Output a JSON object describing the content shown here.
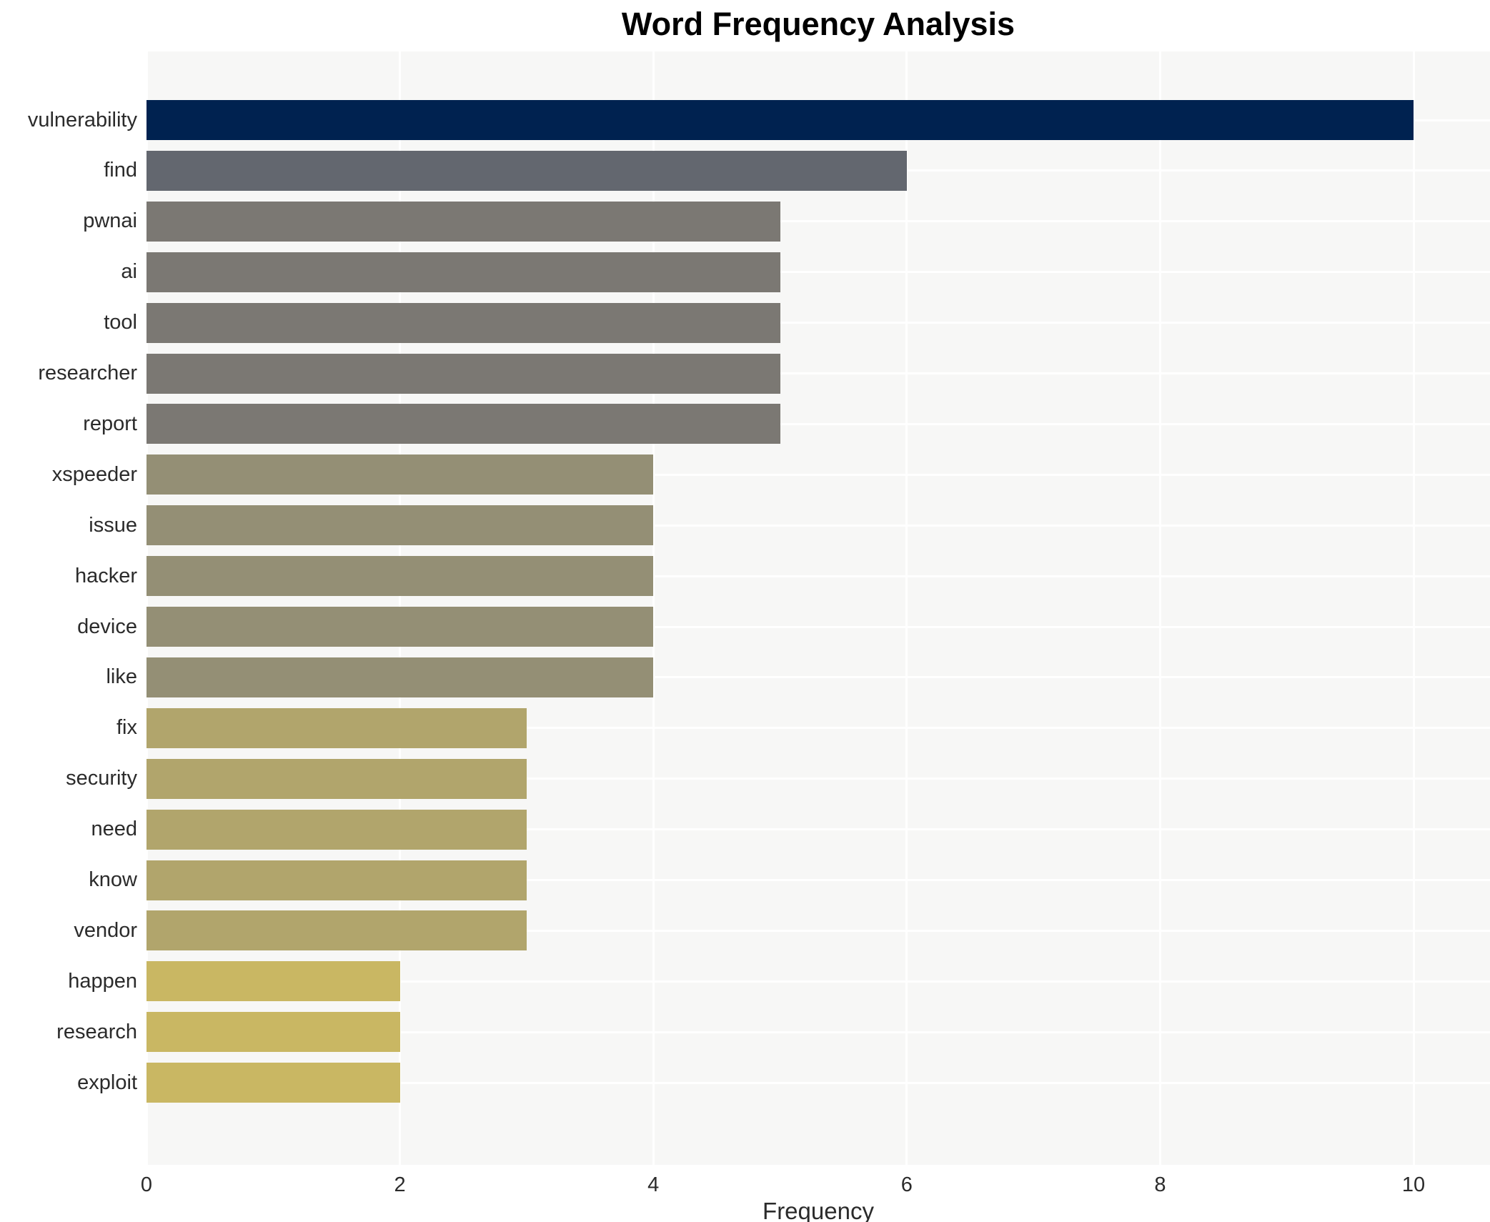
{
  "chart_data": {
    "type": "bar",
    "orientation": "horizontal",
    "title": "Word Frequency Analysis",
    "xlabel": "Frequency",
    "ylabel": "",
    "xlim": [
      0,
      10
    ],
    "xticks": [
      0,
      2,
      4,
      6,
      8,
      10
    ],
    "grid": true,
    "legend": false,
    "categories": [
      "vulnerability",
      "find",
      "pwnai",
      "ai",
      "tool",
      "researcher",
      "report",
      "xspeeder",
      "issue",
      "hacker",
      "device",
      "like",
      "fix",
      "security",
      "need",
      "know",
      "vendor",
      "happen",
      "research",
      "exploit"
    ],
    "values": [
      10,
      6,
      5,
      5,
      5,
      5,
      5,
      4,
      4,
      4,
      4,
      4,
      3,
      3,
      3,
      3,
      3,
      2,
      2,
      2
    ],
    "colors": {
      "freq_10": "#002250",
      "freq_6": "#63676f",
      "freq_5": "#7b7873",
      "freq_4": "#948f75",
      "freq_3": "#b1a56c",
      "freq_2": "#c9b763",
      "plot_background": "#f7f7f6",
      "gridline": "#ffffff",
      "text": "#2b2b2b",
      "title_text": "#000000"
    }
  }
}
